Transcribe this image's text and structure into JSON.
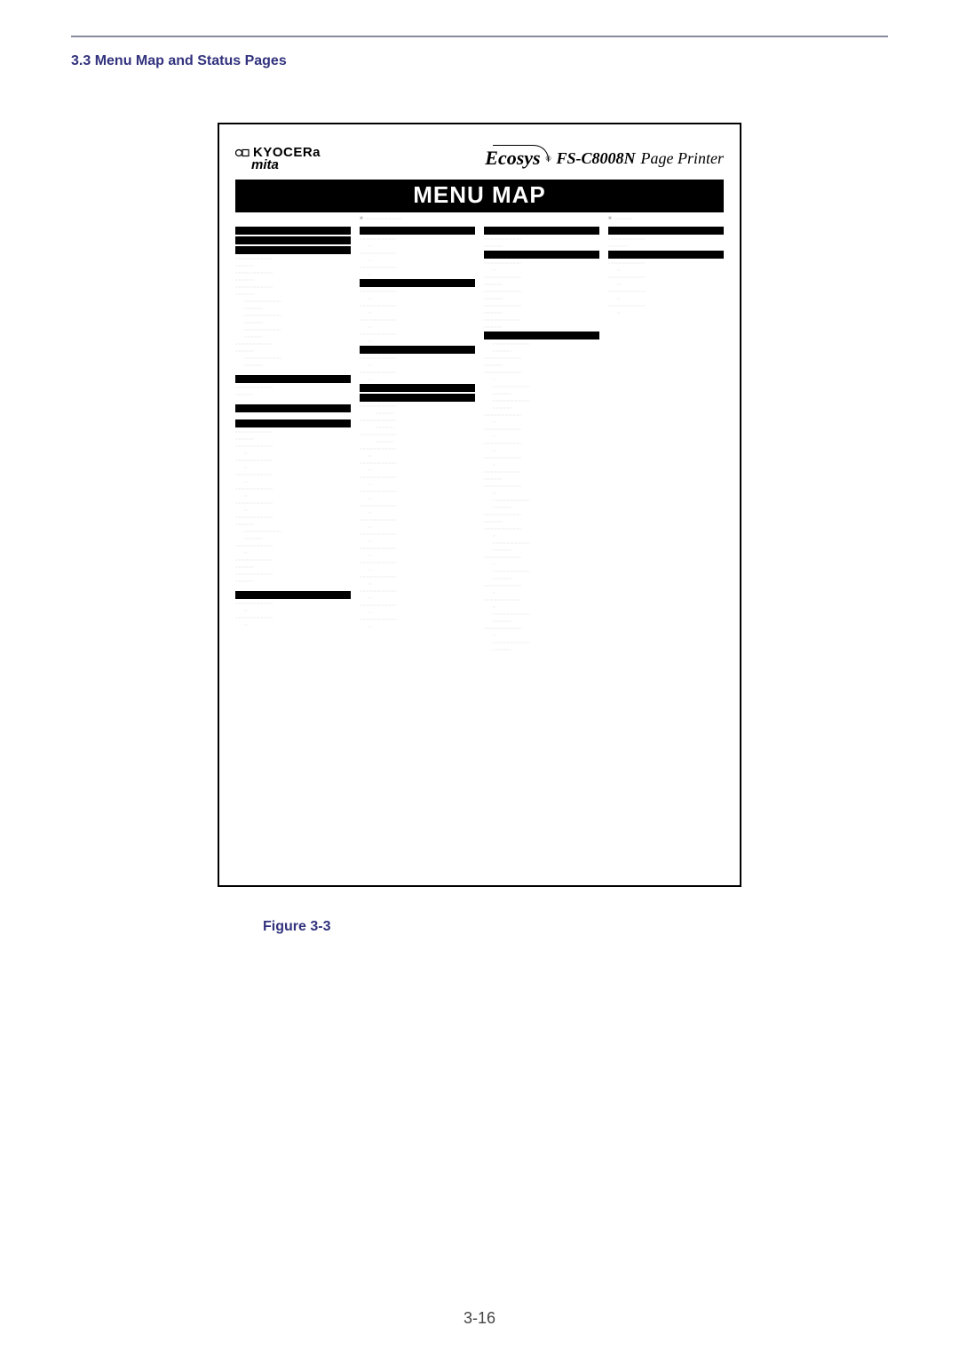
{
  "heading": "3.3 Menu Map and Status Pages",
  "brand_upper": "KYOCERa",
  "brand_lower": "mita",
  "ecosys": "Ecosys",
  "reg": "®",
  "model": "FS-C8008N",
  "printer_label": "Page Printer",
  "title_bar": "MENU MAP",
  "figure_caption": "Figure 3-3",
  "page_number": "3-16",
  "g_long": "::::::::::::::::::::::::::::::::::::::::::::::::::::",
  "g_med": "::::::::::::::::::::::::::::::::",
  "g_short": "::::::::::::::::",
  "g_tiny": ":::",
  "colors": {
    "heading": "#32327e",
    "rule": "#8a8aa0",
    "grey_text": "#c8c8c8",
    "black": "#000000",
    "white": "#ffffff"
  },
  "layout4": [
    "H",
    "ww",
    "H",
    "wb",
    "wb",
    "wb",
    "wb"
  ],
  "layout1": [
    "H",
    "H",
    "H",
    "ww",
    "ww",
    "ww",
    "wi",
    "wi",
    "wi",
    "ww",
    "wi",
    "sp",
    "H",
    "ww",
    "sp",
    "H",
    "sp",
    "H",
    "ww",
    "wb",
    "wb",
    "wb",
    "wb",
    "wb",
    "ww",
    "wi",
    "wb",
    "ww",
    "ww",
    "sp",
    "H",
    "wb",
    "wb"
  ],
  "layout2": [
    "H",
    "wb",
    "wb",
    "wb",
    "H",
    "wb",
    "wb",
    "wb",
    "wb",
    "H",
    "wb",
    "wb",
    "H",
    "H",
    "ws",
    "ws",
    "ws",
    "wb",
    "wb",
    "wb",
    "wb",
    "wb",
    "wb",
    "wb",
    "wb",
    "wb",
    "wb",
    "wb",
    "wb",
    "wb"
  ],
  "layout3": [
    "H",
    "ww",
    "H",
    "wb",
    "ww",
    "ww",
    "ww",
    "ww",
    "H",
    "wi",
    "ww",
    "wb",
    "wi",
    "wi",
    "wb",
    "wb",
    "wb",
    "wb",
    "ww",
    "wb",
    "wi",
    "ww",
    "wb",
    "wi",
    "wb",
    "wi",
    "wb",
    "wb",
    "wi",
    "wb",
    "wi"
  ],
  "sq_marker": "■"
}
